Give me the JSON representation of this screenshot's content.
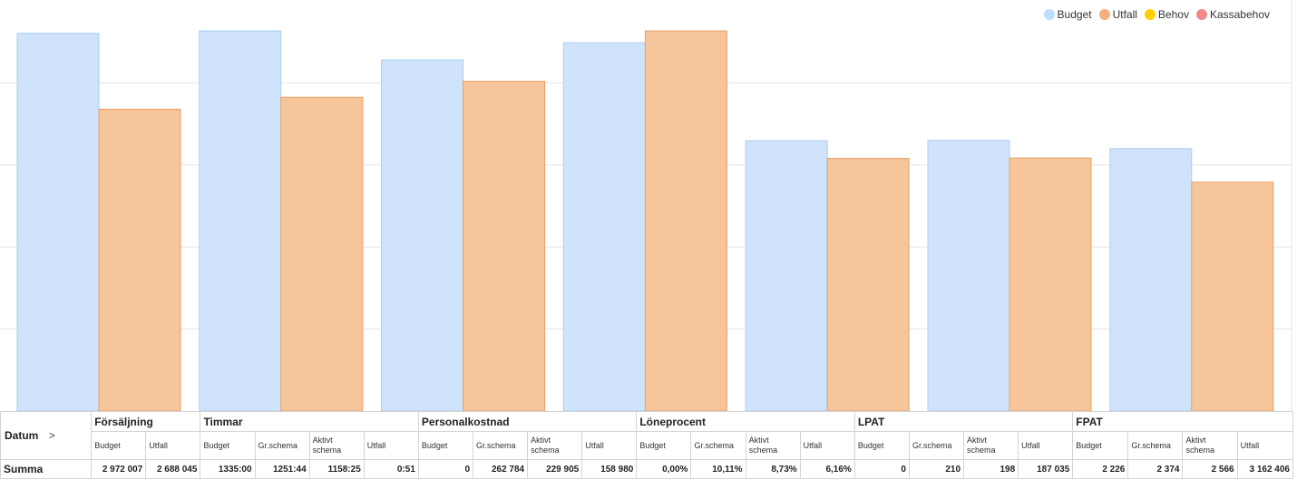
{
  "legend": [
    {
      "label": "Budget",
      "color": "#bfdcff"
    },
    {
      "label": "Utfall",
      "color": "#f5b07b"
    },
    {
      "label": "Behov",
      "color": "#ffd000"
    },
    {
      "label": "Kassabehov",
      "color": "#f08a8a"
    }
  ],
  "colors": {
    "budget_fill": "#cfe4fb",
    "budget_stroke": "#a9cdf5",
    "utfall_fill": "#f6c59a",
    "utfall_stroke": "#eaa06a",
    "grid": "#e6e6e6"
  },
  "chart_data": {
    "type": "bar",
    "grid": true,
    "legend_position": "top-right",
    "ylim": [
      0,
      100
    ],
    "series": [
      {
        "name": "Budget",
        "values": [
          92.1,
          92.7,
          85.6,
          89.8,
          65.9,
          66.0,
          64.0
        ]
      },
      {
        "name": "Utfall",
        "values": [
          73.6,
          76.5,
          80.4,
          92.7,
          61.6,
          61.7,
          55.8
        ]
      }
    ]
  },
  "table": {
    "datum_label": "Datum",
    "datum_chevron": ">",
    "groups": [
      {
        "label": "Försäljning",
        "cols": 2
      },
      {
        "label": "Timmar",
        "cols": 4
      },
      {
        "label": "Personalkostnad",
        "cols": 4
      },
      {
        "label": "Löneprocent",
        "cols": 4
      },
      {
        "label": "LPAT",
        "cols": 4
      },
      {
        "label": "FPAT",
        "cols": 4
      }
    ],
    "subheaders": [
      "Budget",
      "Utfall",
      "Budget",
      "Gr.schema",
      "Aktivt schema",
      "Utfall",
      "Budget",
      "Gr.schema",
      "Aktivt schema",
      "Utfall",
      "Budget",
      "Gr.schema",
      "Aktivt schema",
      "Utfall",
      "Budget",
      "Gr.schema",
      "Aktivt schema",
      "Utfall",
      "Budget",
      "Gr.schema",
      "Aktivt schema",
      "Utfall"
    ],
    "summary_label": "Summa",
    "summary": [
      "2 972 007",
      "2 688 045",
      "1335:00",
      "1251:44",
      "1158:25",
      "0:51",
      "0",
      "262 784",
      "229 905",
      "158 980",
      "0,00%",
      "10,11%",
      "8,73%",
      "6,16%",
      "0",
      "210",
      "198",
      "187 035",
      "2 226",
      "2 374",
      "2 566",
      "3 162 406"
    ]
  }
}
